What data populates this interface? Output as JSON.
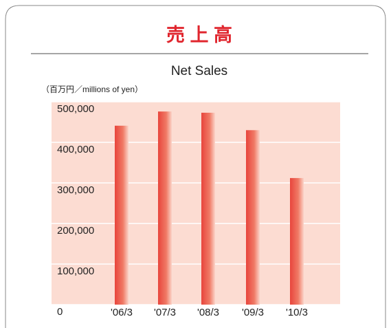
{
  "chart_data": {
    "type": "bar",
    "title": "売 上 高",
    "subtitle": "Net Sales",
    "unit_label": "（百万円／millions of yen）",
    "categories": [
      "'06/3",
      "'07/3",
      "'08/3",
      "'09/3",
      "'10/3"
    ],
    "values": [
      441000,
      476000,
      473000,
      430000,
      312000
    ],
    "color": "#e8453c",
    "ylim": [
      0,
      500000
    ],
    "yticks": [
      {
        "value": 0,
        "label": "0"
      },
      {
        "value": 100000,
        "label": "100,000"
      },
      {
        "value": 200000,
        "label": "200,000"
      },
      {
        "value": 300000,
        "label": "300,000"
      },
      {
        "value": 400000,
        "label": "400,000"
      },
      {
        "value": 500000,
        "label": "500,000"
      }
    ],
    "grid": true
  }
}
